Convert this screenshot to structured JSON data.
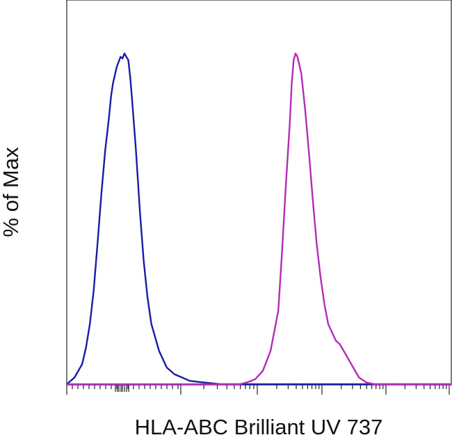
{
  "chart_data": {
    "type": "line",
    "title": "",
    "xlabel": "HLA-ABC Brilliant UV 737",
    "ylabel": "% of Max",
    "x_scale": "log (biexponential)",
    "x_tick_labels": [],
    "y_tick_labels": [],
    "ylim": [
      0,
      100
    ],
    "xlim": [
      0,
      100
    ],
    "grid": false,
    "legend": "none",
    "series": [
      {
        "color": "#1a1aa6",
        "x": [
          0,
          2,
          4,
          5,
          6,
          7,
          8,
          9,
          10,
          11,
          11.5,
          12,
          13,
          14,
          14.5,
          15,
          16,
          16.5,
          17,
          18,
          19,
          20,
          21,
          22,
          24,
          26,
          28,
          30,
          32,
          35,
          40,
          100
        ],
        "y": [
          0,
          2,
          6,
          11,
          18,
          28,
          42,
          57,
          70,
          80,
          86,
          90,
          95,
          98,
          97.5,
          99,
          97,
          92,
          85,
          70,
          52,
          37,
          26,
          18,
          10,
          5,
          3,
          2,
          1,
          0.6,
          0,
          0
        ]
      },
      {
        "color": "#b52ab8",
        "x": [
          0,
          45,
          47,
          49,
          51,
          53,
          55,
          56,
          57,
          58,
          58.5,
          59,
          59.5,
          60,
          61,
          62,
          63,
          64,
          65,
          66,
          67,
          68,
          70,
          71,
          72,
          74,
          76,
          78,
          80,
          100
        ],
        "y": [
          0,
          0,
          0.6,
          1.5,
          4,
          10,
          22,
          40,
          60,
          78,
          90,
          97,
          99,
          98,
          93,
          82,
          69,
          55,
          42,
          32,
          24,
          18,
          13,
          12,
          10,
          6,
          2,
          0.5,
          0,
          0
        ]
      }
    ]
  }
}
